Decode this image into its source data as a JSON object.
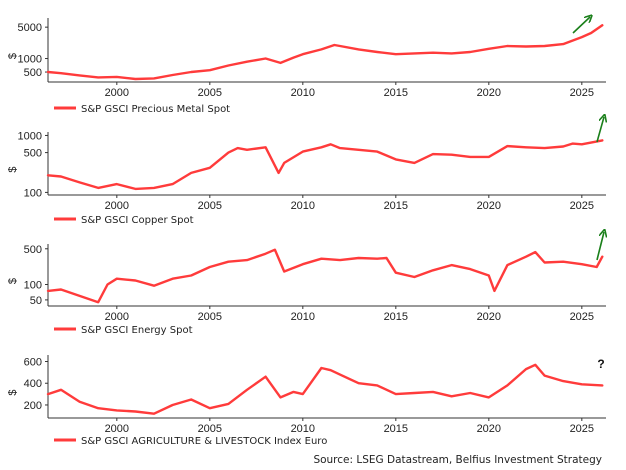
{
  "chart_data": [
    {
      "type": "line",
      "ylabel": "$",
      "scale": "log",
      "ylim": [
        300,
        8000
      ],
      "yticks": [
        {
          "v": 500,
          "label": "500"
        },
        {
          "v": 1000,
          "label": "1000"
        },
        {
          "v": 5000,
          "label": "5000"
        }
      ],
      "xlim": [
        1996.3,
        2026.3
      ],
      "xticks": [
        2000,
        2005,
        2010,
        2015,
        2020,
        2025
      ],
      "series": [
        {
          "name": "S&P GSCI Precious Metal Spot",
          "color": "#ff3b3b",
          "x": [
            1996.3,
            1997,
            1998,
            1999,
            2000,
            2001,
            2002,
            2003,
            2004,
            2005,
            2006,
            2007,
            2008,
            2008.8,
            2009.5,
            2010,
            2011,
            2011.7,
            2012,
            2013,
            2014,
            2015,
            2016,
            2017,
            2018,
            2019,
            2020,
            2021,
            2022,
            2023,
            2024,
            2025,
            2025.5,
            2026.1
          ],
          "y": [
            500,
            470,
            420,
            380,
            390,
            350,
            360,
            430,
            500,
            550,
            700,
            850,
            1000,
            800,
            1050,
            1250,
            1600,
            2000,
            1900,
            1600,
            1400,
            1250,
            1300,
            1350,
            1300,
            1400,
            1650,
            1900,
            1850,
            1900,
            2100,
            3000,
            3700,
            5500
          ]
        }
      ],
      "annotation": "up-arrow"
    },
    {
      "type": "line",
      "ylabel": "$",
      "scale": "log",
      "ylim": [
        90,
        1150
      ],
      "yticks": [
        {
          "v": 100,
          "label": "100"
        },
        {
          "v": 500,
          "label": "500"
        },
        {
          "v": 1000,
          "label": "1000"
        }
      ],
      "xlim": [
        1996.3,
        2026.3
      ],
      "xticks": [
        2000,
        2005,
        2010,
        2015,
        2020,
        2025
      ],
      "series": [
        {
          "name": "S&P GSCI Copper Spot",
          "color": "#ff3b3b",
          "x": [
            1996.3,
            1997,
            1998,
            1999,
            2000,
            2001,
            2002,
            2003,
            2004,
            2005,
            2006,
            2006.5,
            2007,
            2008,
            2008.7,
            2009,
            2010,
            2011,
            2011.5,
            2012,
            2013,
            2014,
            2015,
            2016,
            2017,
            2018,
            2019,
            2020,
            2021,
            2022,
            2023,
            2024,
            2024.5,
            2025,
            2026.1
          ],
          "y": [
            200,
            190,
            150,
            120,
            140,
            115,
            120,
            140,
            220,
            270,
            500,
            600,
            560,
            620,
            220,
            330,
            520,
            620,
            700,
            600,
            560,
            520,
            380,
            330,
            470,
            460,
            420,
            420,
            650,
            620,
            600,
            640,
            720,
            700,
            820
          ]
        }
      ],
      "annotation": "up-arrow"
    },
    {
      "type": "line",
      "ylabel": "$",
      "scale": "log",
      "ylim": [
        38,
        620
      ],
      "yticks": [
        {
          "v": 50,
          "label": "50"
        },
        {
          "v": 100,
          "label": "100"
        },
        {
          "v": 500,
          "label": "500"
        }
      ],
      "xlim": [
        1996.3,
        2026.3
      ],
      "xticks": [
        2000,
        2005,
        2010,
        2015,
        2020,
        2025
      ],
      "series": [
        {
          "name": "S&P GSCI Energy Spot",
          "color": "#ff3b3b",
          "x": [
            1996.3,
            1997,
            1998,
            1999,
            1999.5,
            2000,
            2001,
            2002,
            2003,
            2004,
            2005,
            2006,
            2007,
            2008,
            2008.5,
            2009,
            2010,
            2011,
            2012,
            2013,
            2014,
            2014.5,
            2015,
            2016,
            2017,
            2018,
            2019,
            2020,
            2020.3,
            2021,
            2022,
            2022.5,
            2023,
            2024,
            2025,
            2025.8,
            2026.1
          ],
          "y": [
            75,
            80,
            60,
            45,
            100,
            130,
            120,
            95,
            130,
            150,
            220,
            280,
            300,
            400,
            480,
            180,
            250,
            320,
            300,
            330,
            320,
            330,
            170,
            140,
            190,
            240,
            200,
            150,
            75,
            240,
            350,
            430,
            270,
            280,
            250,
            220,
            350
          ]
        }
      ],
      "annotation": "up-arrow"
    },
    {
      "type": "line",
      "ylabel": "$",
      "scale": "linear",
      "ylim": [
        80,
        660
      ],
      "yticks": [
        {
          "v": 200,
          "label": "200"
        },
        {
          "v": 400,
          "label": "400"
        },
        {
          "v": 600,
          "label": "600"
        }
      ],
      "xlim": [
        1996.3,
        2026.3
      ],
      "xticks": [
        2000,
        2005,
        2010,
        2015,
        2020,
        2025
      ],
      "series": [
        {
          "name": "S&P GSCI AGRICULTURE & LIVESTOCK Index Euro",
          "color": "#ff3b3b",
          "x": [
            1996.3,
            1997,
            1998,
            1999,
            2000,
            2001,
            2002,
            2003,
            2004,
            2005,
            2006,
            2007,
            2008,
            2008.8,
            2009.5,
            2010,
            2011,
            2011.5,
            2012,
            2013,
            2014,
            2015,
            2016,
            2017,
            2018,
            2019,
            2020,
            2021,
            2022,
            2022.5,
            2023,
            2024,
            2025,
            2026.1
          ],
          "y": [
            300,
            340,
            230,
            170,
            150,
            140,
            120,
            200,
            250,
            170,
            210,
            340,
            460,
            270,
            320,
            300,
            540,
            520,
            480,
            400,
            380,
            300,
            310,
            320,
            280,
            310,
            270,
            380,
            530,
            570,
            470,
            420,
            390,
            380
          ]
        }
      ],
      "annotation": "question-mark"
    }
  ],
  "annotation_text": {
    "question": "?"
  },
  "source": "Source: LSEG Datastream, Belfius Investment Strategy"
}
